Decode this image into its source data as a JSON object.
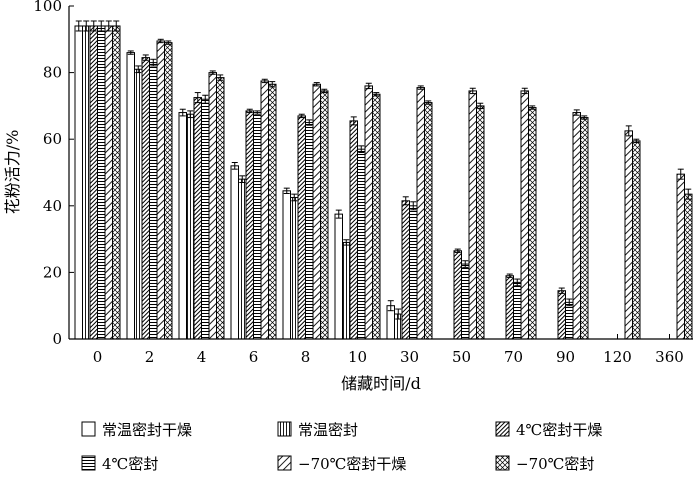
{
  "chart_data": {
    "type": "bar",
    "xlabel": "储藏时间/d",
    "ylabel": "花粉活力/%",
    "ylim": [
      0,
      100
    ],
    "yticks": [
      "0",
      "20",
      "40",
      "60",
      "80",
      "100"
    ],
    "categories": [
      "0",
      "2",
      "4",
      "6",
      "8",
      "10",
      "30",
      "50",
      "70",
      "90",
      "120",
      "360"
    ],
    "error_bars": true,
    "legend_position": "bottom",
    "series": [
      {
        "name": "常温密封干燥",
        "pattern": "blank",
        "values": [
          94,
          86,
          68,
          52,
          44.5,
          37.5,
          10,
          null,
          null,
          null,
          null,
          null
        ],
        "errors": [
          1.5,
          0.5,
          1,
          1,
          0.8,
          1.2,
          1.5,
          0,
          0,
          0,
          0,
          0
        ]
      },
      {
        "name": "常温密封",
        "pattern": "vertical-lines",
        "values": [
          94,
          81,
          67.5,
          48,
          42.5,
          29,
          7.5,
          null,
          null,
          null,
          null,
          null
        ],
        "errors": [
          1.5,
          1,
          1,
          1,
          1,
          0.8,
          1.5,
          0,
          0,
          0,
          0,
          0
        ]
      },
      {
        "name": "4℃密封干燥",
        "pattern": "diagonal-lines",
        "values": [
          94,
          84.5,
          72.5,
          68.5,
          67,
          65.5,
          41.5,
          26.5,
          19,
          14.5,
          null,
          null
        ],
        "errors": [
          1.5,
          0.8,
          1.5,
          0.5,
          0.5,
          1.2,
          1.2,
          0.5,
          0.5,
          0.8,
          0,
          0
        ]
      },
      {
        "name": "4℃密封",
        "pattern": "horizontal-lines",
        "values": [
          94,
          83,
          72,
          68,
          65,
          57,
          40,
          22.5,
          17,
          11,
          null,
          null
        ],
        "errors": [
          1.5,
          1,
          1.2,
          0.5,
          0.8,
          1,
          1.2,
          1,
          1,
          1,
          0,
          0
        ]
      },
      {
        "name": "−70℃密封干燥",
        "pattern": "wide-diagonal",
        "values": [
          94,
          89.5,
          80,
          77.5,
          76.5,
          76,
          75.5,
          74.5,
          74.5,
          68,
          62.5,
          49.5
        ],
        "errors": [
          1.5,
          0.5,
          0.5,
          0.5,
          0.5,
          0.8,
          0.5,
          0.8,
          0.8,
          0.8,
          1.5,
          1.5
        ]
      },
      {
        "name": "−70℃密封",
        "pattern": "cross-diagonal",
        "values": [
          94,
          89,
          78.5,
          76.5,
          74.5,
          73.5,
          71,
          70,
          69.5,
          66.5,
          59.5,
          43.5
        ],
        "errors": [
          1.5,
          0.5,
          0.8,
          0.8,
          0.5,
          0.5,
          0.5,
          0.8,
          0.5,
          0.5,
          0.5,
          1.5
        ]
      }
    ]
  }
}
